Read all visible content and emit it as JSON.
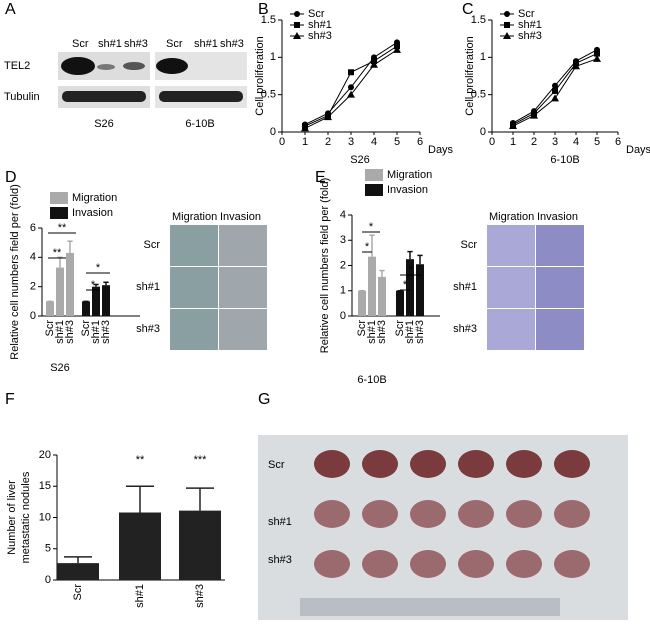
{
  "panel_labels": [
    "A",
    "B",
    "C",
    "D",
    "E",
    "F",
    "G"
  ],
  "blot": {
    "lanes_left": [
      "Scr",
      "sh#1",
      "sh#3"
    ],
    "lanes_right": [
      "Scr",
      "sh#1",
      "sh#3"
    ],
    "rows": [
      "TEL2",
      "Tubulin"
    ],
    "cell_lines": [
      "S26",
      "6-10B"
    ]
  },
  "transwell": [
    {
      "columns": [
        "Migration",
        "Invasion"
      ],
      "rows": [
        "Scr",
        "sh#1",
        "sh#3"
      ]
    },
    {
      "columns": [
        "Migration",
        "Invasion"
      ],
      "rows": [
        "Scr",
        "sh#1",
        "sh#3"
      ]
    }
  ],
  "photo": {
    "rows": [
      "Scr",
      "sh#1",
      "sh#3"
    ]
  },
  "chart_data": [
    {
      "type": "line",
      "xlabel": "Days",
      "ylabel": "Cell proliferation",
      "caption": "S26",
      "xlim": [
        0,
        6
      ],
      "xticks": [
        0,
        1,
        2,
        3,
        4,
        5,
        6
      ],
      "ylim": [
        0,
        1.5
      ],
      "yticks": [
        0,
        0.5,
        1,
        1.5
      ],
      "x": [
        1,
        2,
        3,
        4,
        5
      ],
      "series": [
        {
          "name": "Scr",
          "color": "#000000",
          "marker": "circle",
          "values": [
            0.1,
            0.25,
            0.6,
            1.0,
            1.2
          ]
        },
        {
          "name": "sh#1",
          "color": "#000000",
          "marker": "square",
          "values": [
            0.08,
            0.22,
            0.8,
            0.95,
            1.15
          ]
        },
        {
          "name": "sh#3",
          "color": "#000000",
          "marker": "triangle",
          "values": [
            0.05,
            0.2,
            0.5,
            0.9,
            1.1
          ]
        }
      ]
    },
    {
      "type": "line",
      "xlabel": "Days",
      "ylabel": "Cell proliferation",
      "caption": "6-10B",
      "xlim": [
        0,
        6
      ],
      "xticks": [
        0,
        1,
        2,
        3,
        4,
        5,
        6
      ],
      "ylim": [
        0,
        1.5
      ],
      "yticks": [
        0,
        0.5,
        1,
        1.5
      ],
      "x": [
        1,
        2,
        3,
        4,
        5
      ],
      "series": [
        {
          "name": "Scr",
          "color": "#000000",
          "marker": "circle",
          "values": [
            0.12,
            0.28,
            0.62,
            0.95,
            1.1
          ]
        },
        {
          "name": "sh#1",
          "color": "#000000",
          "marker": "square",
          "values": [
            0.1,
            0.25,
            0.55,
            0.92,
            1.05
          ]
        },
        {
          "name": "sh#3",
          "color": "#000000",
          "marker": "triangle",
          "values": [
            0.08,
            0.22,
            0.45,
            0.88,
            0.98
          ]
        }
      ]
    },
    {
      "type": "bar",
      "ylabel": "Relative cell numbers field per (fold)",
      "caption": "S26",
      "categories": [
        "Scr",
        "sh#1",
        "sh#3"
      ],
      "ylim": [
        0,
        6
      ],
      "yticks": [
        0,
        2,
        4,
        6
      ],
      "series": [
        {
          "name": "Migration",
          "color": "#aaaaaa",
          "values": [
            1,
            3.3,
            4.3
          ],
          "errors": [
            0,
            0.7,
            0.8
          ]
        },
        {
          "name": "Invasion",
          "color": "#111111",
          "values": [
            1,
            2.0,
            2.1
          ],
          "errors": [
            0,
            0.15,
            0.2
          ]
        }
      ],
      "annotations": [
        "**",
        "**",
        "*",
        "*"
      ]
    },
    {
      "type": "bar",
      "ylabel": "Relative cell numbers field per (fold)",
      "caption": "6-10B",
      "categories": [
        "Scr",
        "sh#1",
        "sh#3"
      ],
      "ylim": [
        0,
        4
      ],
      "yticks": [
        0,
        1,
        2,
        3,
        4
      ],
      "series": [
        {
          "name": "Migration",
          "color": "#aaaaaa",
          "values": [
            1,
            2.35,
            1.55
          ],
          "errors": [
            0,
            0.85,
            0.25
          ]
        },
        {
          "name": "Invasion",
          "color": "#111111",
          "values": [
            1,
            2.25,
            2.05
          ],
          "errors": [
            0,
            0.3,
            0.35
          ]
        }
      ],
      "annotations": [
        "*",
        "*",
        "*",
        "*"
      ]
    },
    {
      "type": "bar",
      "ylabel": [
        "Number of liver",
        "metastatic nodules"
      ],
      "categories": [
        "Scr",
        "sh#1",
        "sh#3"
      ],
      "ylim": [
        0,
        20
      ],
      "yticks": [
        0,
        5,
        10,
        15,
        20
      ],
      "series": [
        {
          "color": "#222222",
          "values": [
            2.7,
            10.8,
            11.1
          ],
          "errors": [
            1.0,
            4.2,
            3.6
          ]
        }
      ],
      "annotations": [
        "**",
        "***"
      ]
    }
  ]
}
